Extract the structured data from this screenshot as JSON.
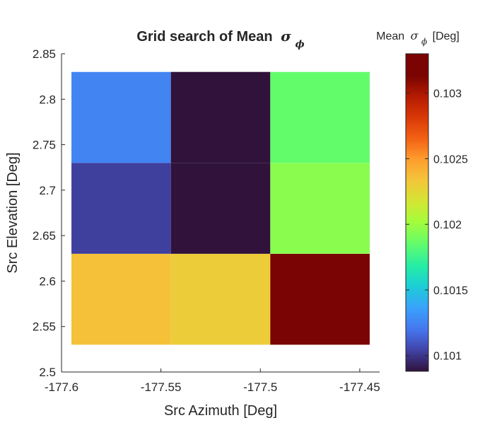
{
  "chart_data": {
    "type": "heatmap",
    "title": "Grid search of Mean",
    "title_symbol": "σ",
    "title_symbol_sub": "ϕ",
    "xlabel": "Src Azimuth [Deg]",
    "ylabel": "Src Elevation [Deg]",
    "xlim": [
      -177.6,
      -177.44
    ],
    "ylim": [
      2.5,
      2.85
    ],
    "x_ticks": [
      -177.6,
      -177.55,
      -177.5,
      -177.45
    ],
    "x_tick_labels": [
      "-177.6",
      "-177.55",
      "-177.5",
      "-177.45"
    ],
    "y_ticks": [
      2.5,
      2.55,
      2.6,
      2.65,
      2.7,
      2.75,
      2.8,
      2.85
    ],
    "y_tick_labels": [
      "2.5",
      "2.55",
      "2.6",
      "2.65",
      "2.7",
      "2.75",
      "2.8",
      "2.85"
    ],
    "x_edges": [
      -177.595,
      -177.545,
      -177.495,
      -177.445
    ],
    "y_edges": [
      2.53,
      2.63,
      2.73,
      2.83
    ],
    "cells": [
      {
        "x": -177.57,
        "y": 2.58,
        "value": 0.10235
      },
      {
        "x": -177.52,
        "y": 2.58,
        "value": 0.1023
      },
      {
        "x": -177.47,
        "y": 2.58,
        "value": 0.1033
      },
      {
        "x": -177.57,
        "y": 2.68,
        "value": 0.10103
      },
      {
        "x": -177.52,
        "y": 2.68,
        "value": 0.10088
      },
      {
        "x": -177.47,
        "y": 2.68,
        "value": 0.10195
      },
      {
        "x": -177.57,
        "y": 2.78,
        "value": 0.10125
      },
      {
        "x": -177.52,
        "y": 2.78,
        "value": 0.10088
      },
      {
        "x": -177.47,
        "y": 2.78,
        "value": 0.10185
      }
    ],
    "colorbar": {
      "colormap": "turbo",
      "range": [
        0.10088,
        0.1033
      ],
      "ticks": [
        0.101,
        0.1015,
        0.102,
        0.1025,
        0.103
      ],
      "tick_labels": [
        "0.101",
        "0.1015",
        "0.102",
        "0.1025",
        "0.103"
      ],
      "title": "Mean",
      "title_symbol": "σ",
      "title_symbol_sub": "ϕ",
      "title_unit": "[Deg]"
    },
    "grid": false
  }
}
